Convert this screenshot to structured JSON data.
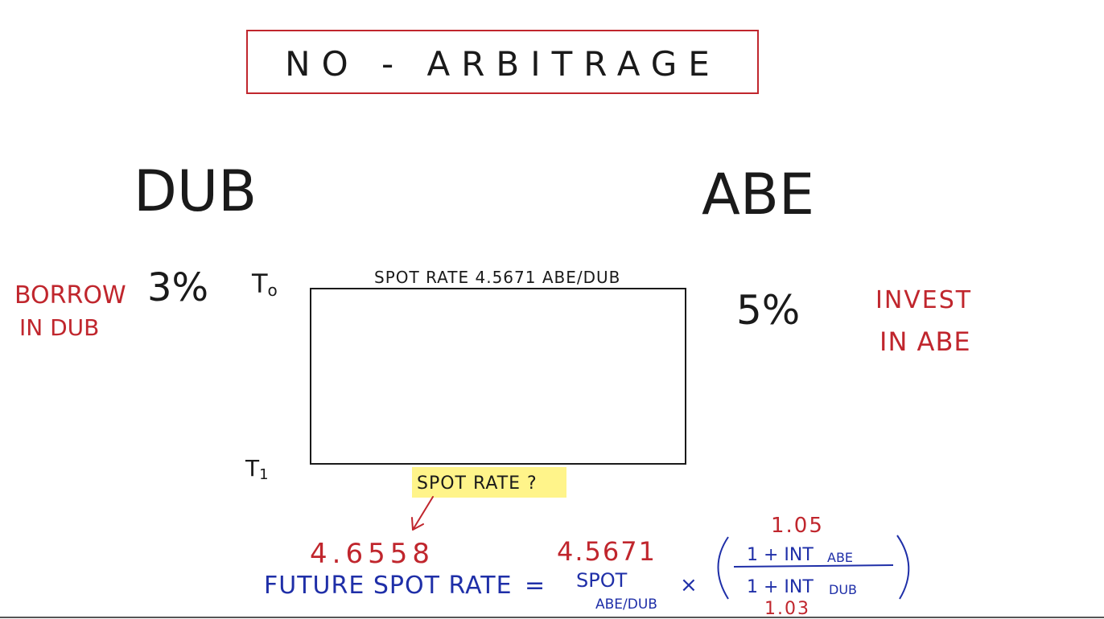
{
  "title": "NO - ARBITRAGE",
  "countries": {
    "left": "DUB",
    "right": "ABE"
  },
  "rates": {
    "left_rate": "3%",
    "right_rate": "5%"
  },
  "time_labels": {
    "t0": "T0",
    "t1": "T1"
  },
  "actions": {
    "borrow_line1": "BORROW",
    "borrow_line2": "IN DUB",
    "invest_line1": "INVEST",
    "invest_line2": "IN ABE"
  },
  "spot_rate_top": "SPOT RATE 4.5671 ABE/DUB",
  "spot_rate_question": "SPOT RATE ?",
  "formula": {
    "future_spot_value": "4.6558",
    "future_spot_label": "FUTURE SPOT RATE",
    "equals": "=",
    "spot_value": "4.5671",
    "spot_label": "SPOT",
    "spot_subscript": "ABE/DUB",
    "times": "×",
    "numerator_value": "1.05",
    "numerator_label": "1 + INT",
    "numerator_subscript": "ABE",
    "denominator_label": "1 + INT",
    "denominator_subscript": "DUB",
    "denominator_value": "1.03"
  },
  "colors": {
    "black_ink": "#1a1a1a",
    "red_ink": "#c0262d",
    "blue_ink": "#1f2fa8",
    "highlight": "#fff48a",
    "title_box": "#c0262d"
  }
}
